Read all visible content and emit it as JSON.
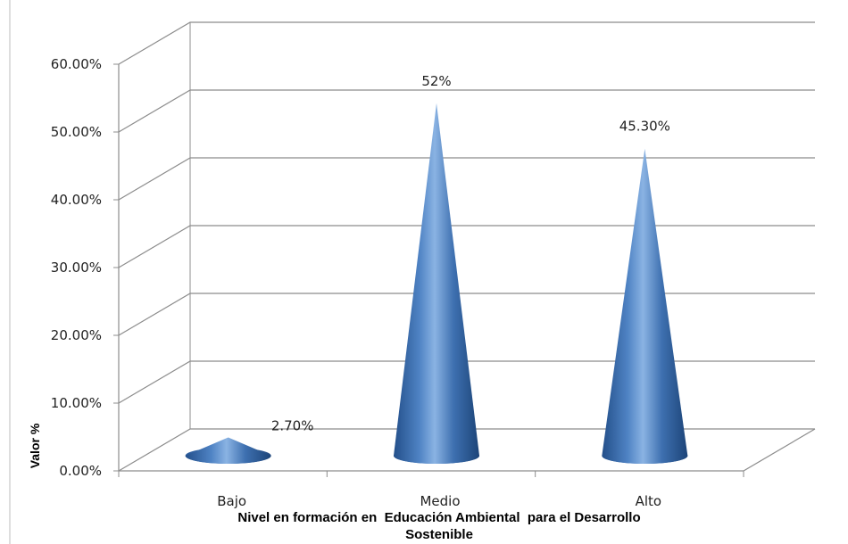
{
  "chart_data": {
    "type": "bar",
    "style": "3d-cone",
    "categories": [
      "Bajo",
      "Medio",
      "Alto"
    ],
    "values": [
      2.7,
      52,
      45.3
    ],
    "data_labels": [
      "2.70%",
      "52%",
      "45.30%"
    ],
    "ylabel": "Valor %",
    "xlabel_lines": [
      "Nivel en formación en  Educación Ambiental  para el Desarrollo",
      "Sostenible"
    ],
    "yticks": [
      "0.00%",
      "10.00%",
      "20.00%",
      "30.00%",
      "40.00%",
      "50.00%",
      "60.00%"
    ],
    "ylim": [
      0,
      60
    ],
    "grid": true,
    "legend": "none",
    "colors": {
      "cone": "#4a7ebb",
      "cone_dark": "#1f4f8f",
      "cone_light": "#8fb6e6",
      "grid": "#8c8c8c"
    }
  }
}
